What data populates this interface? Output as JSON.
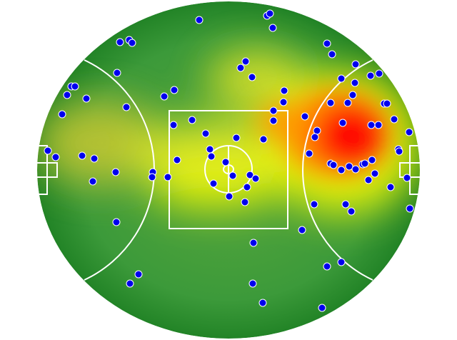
{
  "chart_data": {
    "type": "scatter",
    "color": "#0000ee",
    "xlim": [
      52,
      588
    ],
    "ylim": [
      474,
      2
    ],
    "x": [
      279,
      374,
      378,
      382,
      168,
      181,
      185,
      458,
      465,
      344,
      337,
      498,
      164,
      353,
      519,
      531,
      478,
      497,
      100,
      105,
      94,
      121,
      230,
      244,
      398,
      494,
      463,
      487,
      538,
      542,
      177,
      87,
      383,
      397,
      427,
      552,
      269,
      383,
      243,
      480,
      520,
      530,
      573,
      444,
      441,
      288,
      331,
      369,
      67,
      78,
      115,
      132,
      558,
      559,
      433,
      294,
      296,
      316,
      248,
      463,
      467,
      489,
      508,
      511,
      521,
      478,
      498,
      162,
      214,
      213,
      235,
      326,
      350,
      358,
      525,
      516,
      570,
      130,
      299,
      346,
      321,
      547,
      343,
      440,
      484,
      492,
      574,
      163,
      423,
      355,
      478,
      458,
      194,
      182,
      354,
      368,
      451
    ],
    "y": [
      28,
      22,
      19,
      39,
      59,
      56,
      60,
      61,
      76,
      86,
      95,
      90,
      102,
      108,
      106,
      103,
      110,
      116,
      121,
      121,
      133,
      138,
      135,
      126,
      127,
      133,
      144,
      144,
      145,
      145,
      150,
      160,
      155,
      143,
      163,
      167,
      168,
      169,
      175,
      172,
      175,
      175,
      185,
      183,
      192,
      187,
      193,
      195,
      211,
      220,
      218,
      222,
      209,
      212,
      215,
      209,
      219,
      227,
      224,
      229,
      231,
      233,
      230,
      229,
      224,
      238,
      237,
      241,
      241,
      248,
      248,
      246,
      245,
      250,
      243,
      252,
      249,
      254,
      257,
      262,
      275,
      262,
      283,
      286,
      286,
      296,
      292,
      311,
      322,
      340,
      367,
      373,
      384,
      397,
      397,
      424,
      431
    ]
  }
}
